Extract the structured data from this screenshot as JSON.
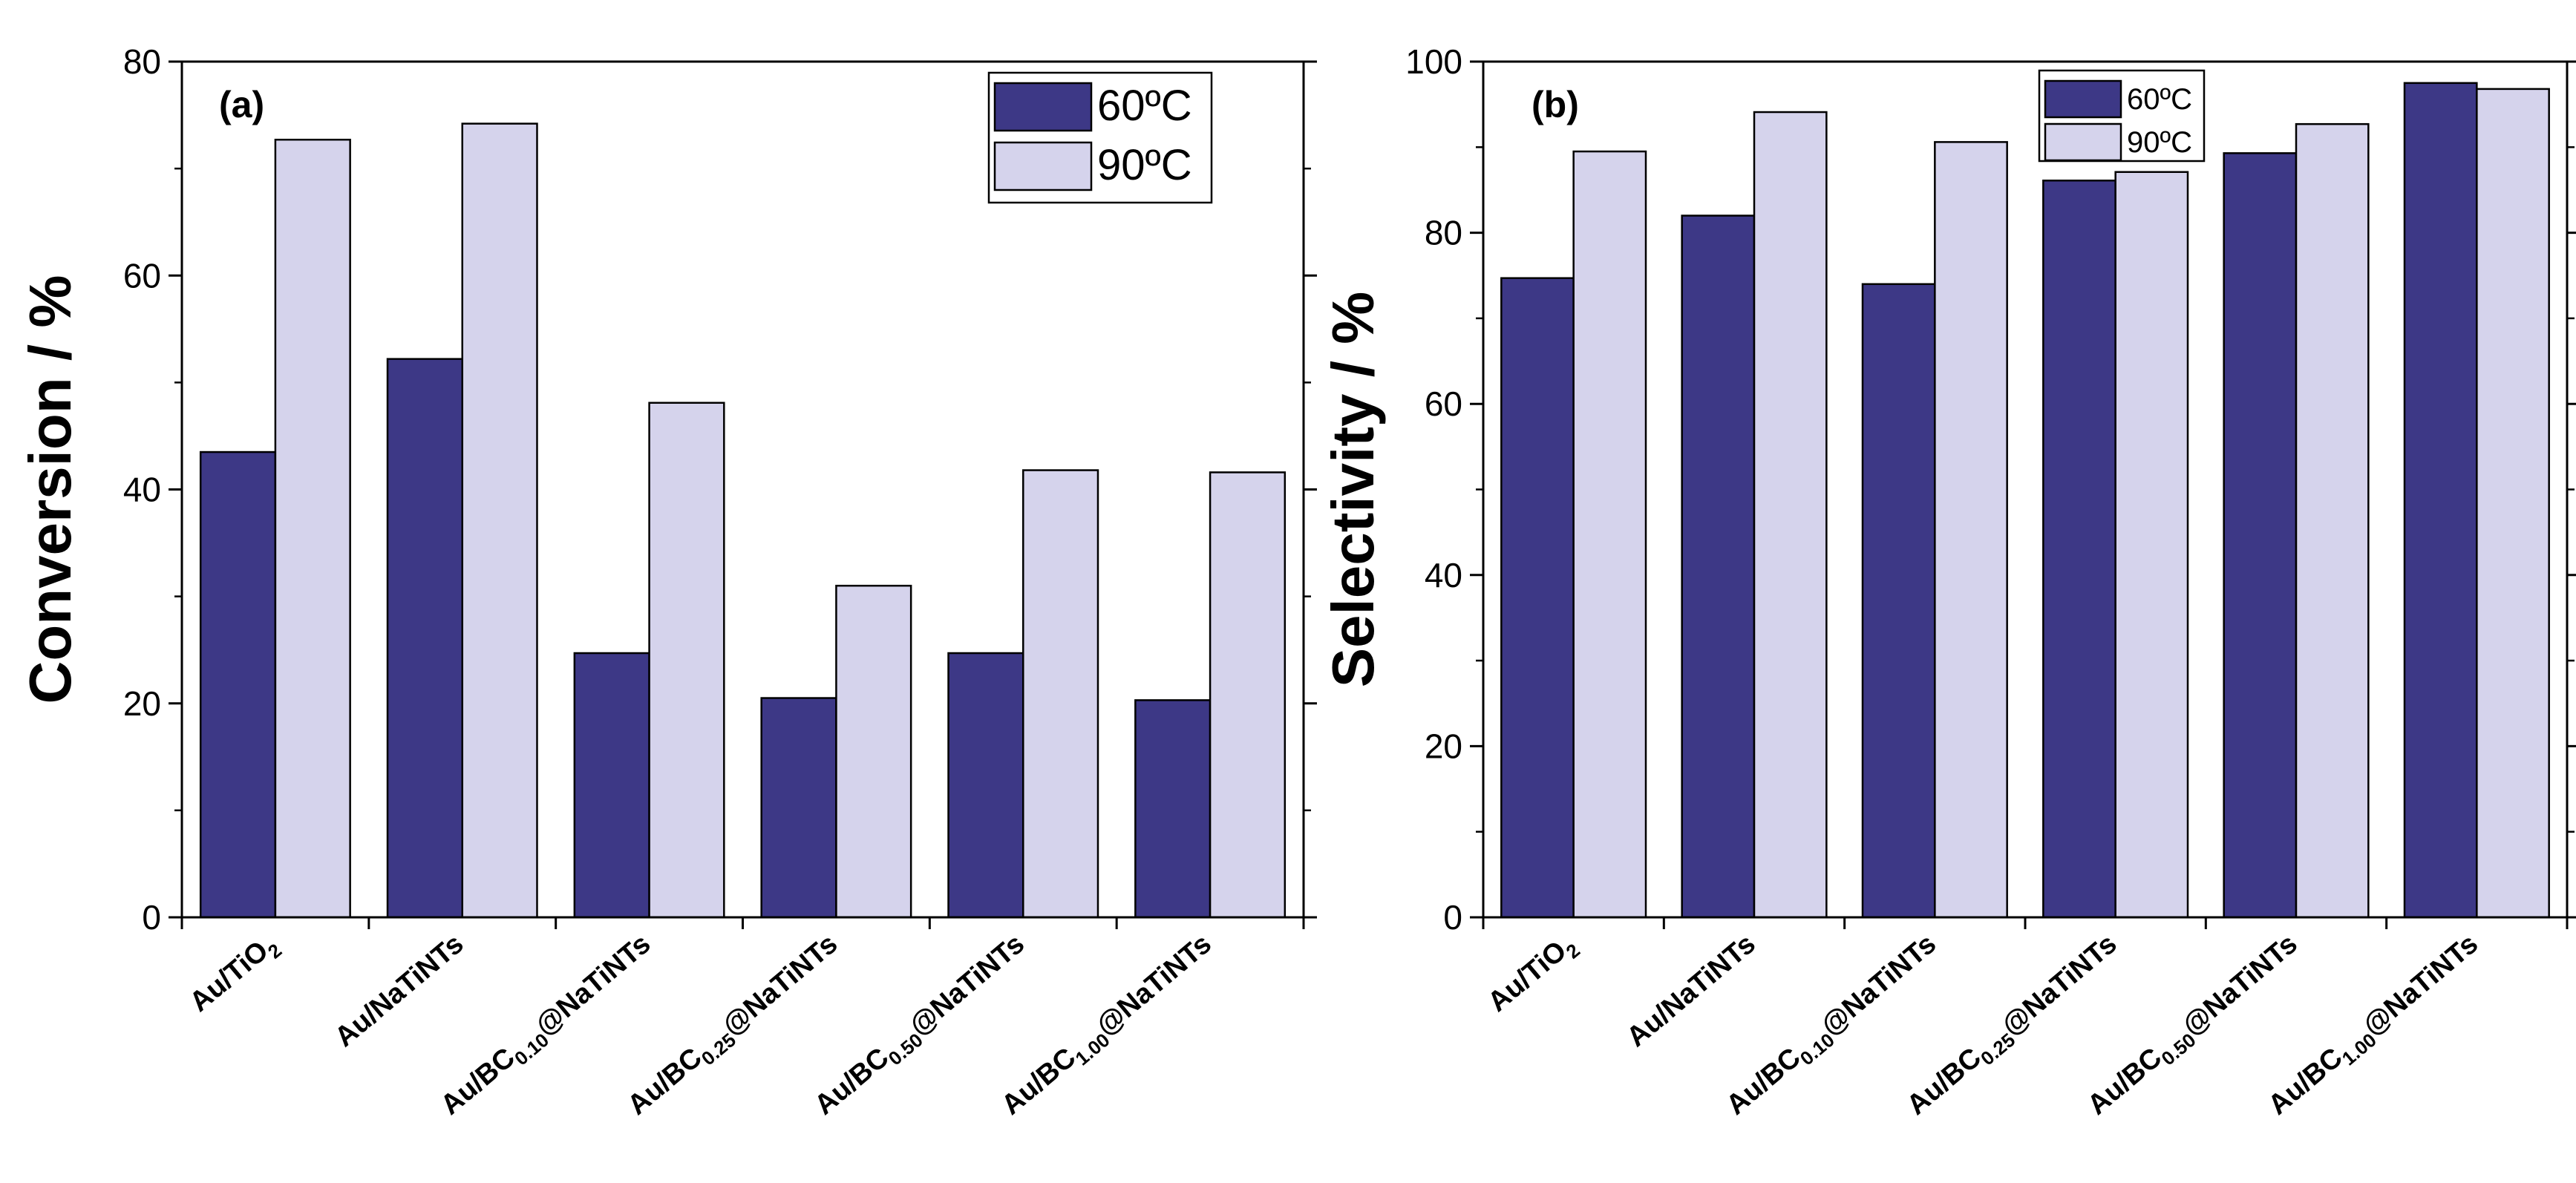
{
  "colors": {
    "series_60": "#3d3886",
    "series_90": "#d5d3ec",
    "axis": "#000000"
  },
  "chart_data": [
    {
      "type": "bar",
      "panel_label": "(a)",
      "ylabel": "Conversion / %",
      "xlabel": "",
      "ylim": [
        0,
        80
      ],
      "yticks": [
        0,
        20,
        40,
        60,
        80
      ],
      "legend_position": "top-right",
      "categories": [
        {
          "main": "Au/TiO",
          "sub": "2",
          "tail": ""
        },
        {
          "main": "Au/NaTiNTs",
          "sub": "",
          "tail": ""
        },
        {
          "main": "Au/BC",
          "sub": "0.10",
          "tail": "@NaTiNTs"
        },
        {
          "main": "Au/BC",
          "sub": "0.25",
          "tail": "@NaTiNTs"
        },
        {
          "main": "Au/BC",
          "sub": "0.50",
          "tail": "@NaTiNTs"
        },
        {
          "main": "Au/BC",
          "sub": "1.00",
          "tail": "@NaTiNTs"
        }
      ],
      "series": [
        {
          "name": "60ºC",
          "values": [
            43.5,
            52.2,
            24.7,
            20.5,
            24.7,
            20.3
          ]
        },
        {
          "name": "90ºC",
          "values": [
            72.7,
            74.2,
            48.1,
            31.0,
            41.8,
            41.6
          ]
        }
      ]
    },
    {
      "type": "bar",
      "panel_label": "(b)",
      "ylabel": "Selectivity / %",
      "xlabel": "",
      "ylim": [
        0,
        100
      ],
      "yticks": [
        0,
        20,
        40,
        60,
        80,
        100
      ],
      "legend_position": "top-center",
      "categories": [
        {
          "main": "Au/TiO",
          "sub": "2",
          "tail": ""
        },
        {
          "main": "Au/NaTiNTs",
          "sub": "",
          "tail": ""
        },
        {
          "main": "Au/BC",
          "sub": "0.10",
          "tail": "@NaTiNTs"
        },
        {
          "main": "Au/BC",
          "sub": "0.25",
          "tail": "@NaTiNTs"
        },
        {
          "main": "Au/BC",
          "sub": "0.50",
          "tail": "@NaTiNTs"
        },
        {
          "main": "Au/BC",
          "sub": "1.00",
          "tail": "@NaTiNTs"
        }
      ],
      "series": [
        {
          "name": "60ºC",
          "values": [
            74.7,
            82.0,
            74.0,
            86.1,
            89.3,
            97.5
          ]
        },
        {
          "name": "90ºC",
          "values": [
            89.5,
            94.1,
            90.6,
            87.1,
            92.7,
            96.8
          ]
        }
      ]
    }
  ]
}
